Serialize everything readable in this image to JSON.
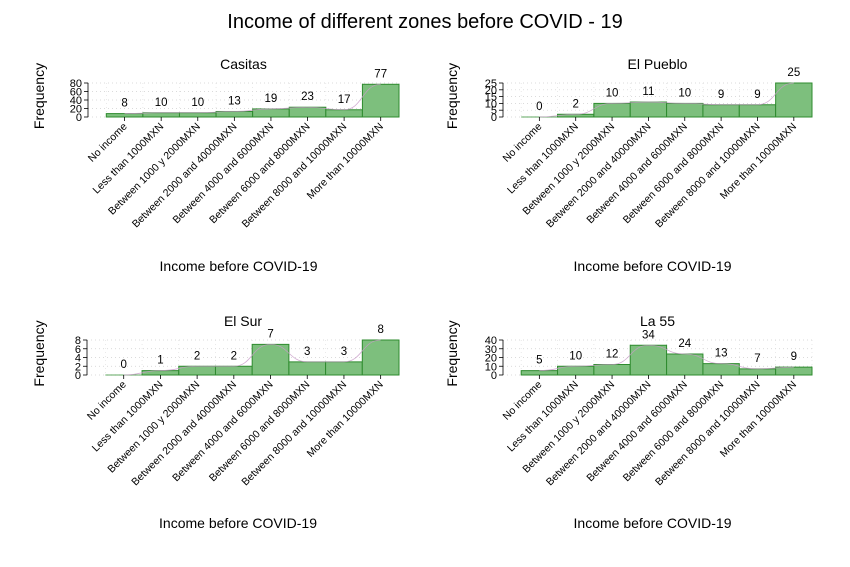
{
  "figure": {
    "title": "Income of different zones before COVID - 19"
  },
  "chart_data": [
    {
      "type": "bar",
      "title": "Casitas",
      "xlabel": "Income before COVID-19",
      "ylabel": "Frequency",
      "categories": [
        "No income",
        "Less than 1000MXN",
        "Between 1000 y 2000MXN",
        "Between 2000 and 40000MXN",
        "Between 4000 and 6000MXN",
        "Between 6000 and 8000MXN",
        "Between 8000 and 10000MXN",
        "More than 10000MXN"
      ],
      "values": [
        8,
        10,
        10,
        13,
        19,
        23,
        17,
        77
      ],
      "yticks": [
        0,
        20,
        40,
        60,
        80
      ],
      "ylim": [
        0,
        80
      ],
      "grid": true,
      "colors": {
        "bar_fill": "#7dbf7d",
        "bar_stroke": "#2e8b2e",
        "curve": "#c89bc8"
      }
    },
    {
      "type": "bar",
      "title": "El Pueblo",
      "xlabel": "Income before COVID-19",
      "ylabel": "Frequency",
      "categories": [
        "No income",
        "Less than 1000MXN",
        "Between 1000 y 2000MXN",
        "Between 2000 and 40000MXN",
        "Between 4000 and 6000MXN",
        "Between 6000 and 8000MXN",
        "Between 8000 and 10000MXN",
        "More than 10000MXN"
      ],
      "values": [
        0,
        2,
        10,
        11,
        10,
        9,
        9,
        25
      ],
      "yticks": [
        0,
        5,
        10,
        15,
        20,
        25
      ],
      "ylim": [
        0,
        25
      ],
      "grid": true,
      "colors": {
        "bar_fill": "#7dbf7d",
        "bar_stroke": "#2e8b2e",
        "curve": "#c89bc8"
      }
    },
    {
      "type": "bar",
      "title": "El Sur",
      "xlabel": "Income before COVID-19",
      "ylabel": "Frequency",
      "categories": [
        "No income",
        "Less than 1000MXN",
        "Between 1000 y 2000MXN",
        "Between 2000 and 40000MXN",
        "Between 4000 and 6000MXN",
        "Between 6000 and 8000MXN",
        "Between 8000 and 10000MXN",
        "More than 10000MXN"
      ],
      "values": [
        0,
        1,
        2,
        2,
        7,
        3,
        3,
        8
      ],
      "yticks": [
        0,
        2,
        4,
        6,
        8
      ],
      "ylim": [
        0,
        8
      ],
      "grid": true,
      "colors": {
        "bar_fill": "#7dbf7d",
        "bar_stroke": "#2e8b2e",
        "curve": "#c89bc8"
      }
    },
    {
      "type": "bar",
      "title": "La 55",
      "xlabel": "Income before COVID-19",
      "ylabel": "Frequency",
      "categories": [
        "No income",
        "Less than 1000MXN",
        "Between 1000 y 2000MXN",
        "Between 2000 and 40000MXN",
        "Between 4000 and 6000MXN",
        "Between 6000 and 8000MXN",
        "Between 8000 and 10000MXN",
        "More than 10000MXN"
      ],
      "values": [
        5,
        10,
        12,
        34,
        24,
        13,
        7,
        9
      ],
      "yticks": [
        0,
        10,
        20,
        30,
        40
      ],
      "ylim": [
        0,
        40
      ],
      "grid": true,
      "colors": {
        "bar_fill": "#7dbf7d",
        "bar_stroke": "#2e8b2e",
        "curve": "#c89bc8"
      }
    }
  ]
}
